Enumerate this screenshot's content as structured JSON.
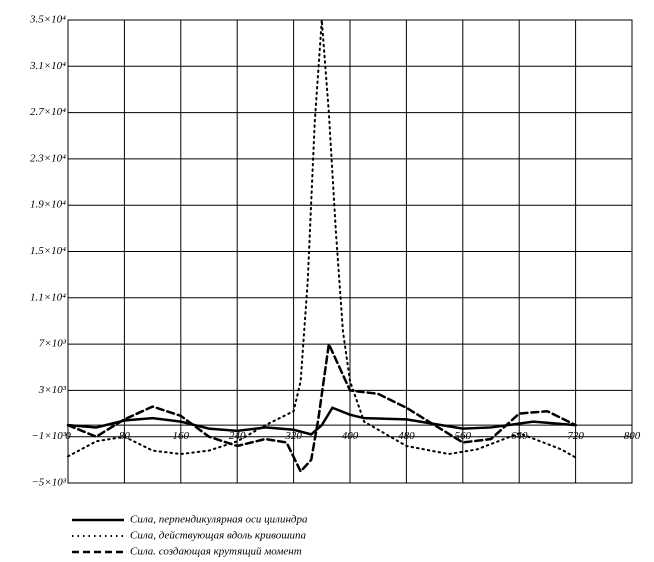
{
  "chart_data": {
    "type": "line",
    "xlim": [
      0,
      800
    ],
    "xticks": [
      0,
      80,
      160,
      240,
      320,
      400,
      480,
      560,
      640,
      720,
      800
    ],
    "ylim": [
      -5000,
      35000
    ],
    "yticks": [
      {
        "value": -5000,
        "label": "−5×10³"
      },
      {
        "value": -1000,
        "label": "−1×10³"
      },
      {
        "value": 3000,
        "label": "3×10³"
      },
      {
        "value": 7000,
        "label": "7×10³"
      },
      {
        "value": 11000,
        "label": "1.1×10⁴"
      },
      {
        "value": 15000,
        "label": "1.5×10⁴"
      },
      {
        "value": 19000,
        "label": "1.9×10⁴"
      },
      {
        "value": 23000,
        "label": "2.3×10⁴"
      },
      {
        "value": 27000,
        "label": "2.7×10⁴"
      },
      {
        "value": 31000,
        "label": "3.1×10⁴"
      },
      {
        "value": 35000,
        "label": "3.5×10⁴"
      }
    ],
    "grid": true,
    "series": [
      {
        "name": "Сила, перпендикулярная оси цилиндра",
        "color": "#000000",
        "dash": "solid",
        "x": [
          0,
          40,
          80,
          120,
          160,
          200,
          240,
          280,
          320,
          345,
          360,
          375,
          400,
          420,
          480,
          560,
          600,
          660,
          720
        ],
        "values": [
          0,
          -200,
          400,
          600,
          300,
          -300,
          -500,
          -200,
          -400,
          -800,
          0,
          1500,
          900,
          600,
          500,
          -300,
          -200,
          300,
          0
        ]
      },
      {
        "name": "Сила, действующая вдоль кривошипа",
        "color": "#000000",
        "dash": "dot",
        "x": [
          0,
          40,
          80,
          120,
          160,
          200,
          240,
          280,
          320,
          330,
          340,
          350,
          360,
          370,
          380,
          390,
          400,
          420,
          480,
          540,
          580,
          640,
          700,
          720
        ],
        "values": [
          -2700,
          -1400,
          -1000,
          -2200,
          -2500,
          -2200,
          -1400,
          0,
          1200,
          3800,
          12400,
          26200,
          35000,
          27000,
          16700,
          8100,
          3800,
          300,
          -1800,
          -2500,
          -2100,
          -700,
          -2100,
          -2800
        ]
      },
      {
        "name": "Сила. создающая крутящий момент",
        "color": "#000000",
        "dash": "dash",
        "x": [
          0,
          40,
          80,
          120,
          160,
          200,
          240,
          280,
          310,
          330,
          345,
          355,
          370,
          385,
          400,
          440,
          480,
          520,
          560,
          600,
          640,
          680,
          720
        ],
        "values": [
          0,
          -1000,
          500,
          1600,
          800,
          -1000,
          -1800,
          -1200,
          -1500,
          -4000,
          -3000,
          500,
          7000,
          5000,
          3000,
          2700,
          1500,
          0,
          -1500,
          -1200,
          1000,
          1200,
          0
        ]
      }
    ]
  }
}
